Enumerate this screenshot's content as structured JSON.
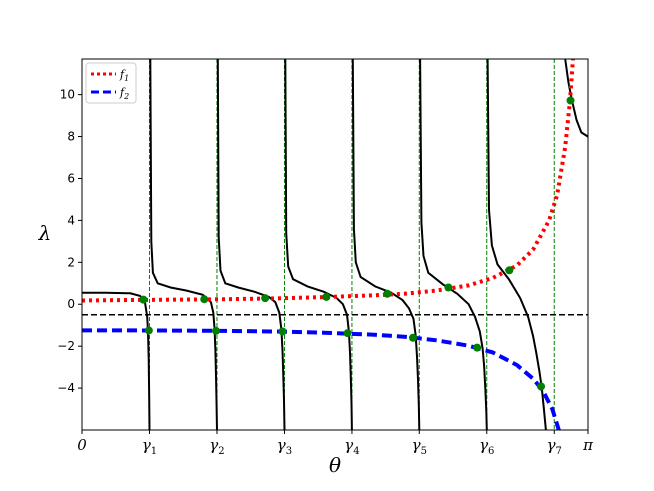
{
  "chart_data": {
    "type": "line",
    "xlabel": "θ",
    "ylabel": "λ",
    "xlim": [
      0,
      3.14159
    ],
    "ylim": [
      -6,
      11.7
    ],
    "grid": false,
    "legend_position": "top-left",
    "colors": {
      "f1": "#ff0000",
      "f2": "#0000ff",
      "curves": "#000000",
      "gamma_lines": "#008000",
      "points": "#008000",
      "hline": "#000000"
    },
    "x_ticks": [
      {
        "value": 0,
        "label": "0"
      },
      {
        "value": 0.419,
        "label": "γ1"
      },
      {
        "value": 0.838,
        "label": "γ2"
      },
      {
        "value": 1.257,
        "label": "γ3"
      },
      {
        "value": 1.676,
        "label": "γ4"
      },
      {
        "value": 2.094,
        "label": "γ5"
      },
      {
        "value": 2.513,
        "label": "γ6"
      },
      {
        "value": 2.932,
        "label": "γ7"
      },
      {
        "value": 3.14159,
        "label": "π"
      }
    ],
    "y_ticks": [
      {
        "value": -4,
        "label": "−4"
      },
      {
        "value": -2,
        "label": "−2"
      },
      {
        "value": 0,
        "label": "0"
      },
      {
        "value": 2,
        "label": "2"
      },
      {
        "value": 4,
        "label": "4"
      },
      {
        "value": 6,
        "label": "6"
      },
      {
        "value": 8,
        "label": "8"
      },
      {
        "value": 10,
        "label": "10"
      }
    ],
    "series": [
      {
        "name": "f1",
        "style": "dotted",
        "x": [
          0,
          0.3,
          0.6,
          0.9,
          1.2,
          1.5,
          1.8,
          2.0,
          2.2,
          2.4,
          2.55,
          2.7,
          2.8,
          2.9,
          2.95,
          3.0,
          3.03,
          3.06
        ],
        "y": [
          0.18,
          0.2,
          0.22,
          0.24,
          0.28,
          0.34,
          0.42,
          0.5,
          0.65,
          0.9,
          1.25,
          1.85,
          2.6,
          4.0,
          5.2,
          7.5,
          9.7,
          13.0
        ]
      },
      {
        "name": "f2",
        "style": "dashed",
        "x": [
          0,
          0.3,
          0.6,
          0.9,
          1.2,
          1.5,
          1.8,
          2.0,
          2.2,
          2.4,
          2.55,
          2.7,
          2.8,
          2.86,
          2.92,
          2.96
        ],
        "y": [
          -1.25,
          -1.25,
          -1.26,
          -1.27,
          -1.3,
          -1.36,
          -1.45,
          -1.55,
          -1.72,
          -1.98,
          -2.3,
          -2.9,
          -3.55,
          -4.1,
          -5.0,
          -6.0
        ]
      }
    ],
    "curves": [
      {
        "x": [
          0,
          0.15,
          0.3,
          0.36,
          0.39,
          0.405,
          0.41,
          0.414,
          0.417,
          0.419
        ],
        "y": [
          0.55,
          0.55,
          0.52,
          0.4,
          0.15,
          -0.6,
          -1.3,
          -2.6,
          -4.5,
          -6.0
        ]
      },
      {
        "x": [
          0.424,
          0.43,
          0.44,
          0.47,
          0.55,
          0.65,
          0.75,
          0.8,
          0.815,
          0.823,
          0.828,
          0.832,
          0.835,
          0.838
        ],
        "y": [
          11.7,
          3.0,
          1.5,
          1.0,
          0.8,
          0.65,
          0.45,
          0.1,
          -0.4,
          -1.2,
          -2.2,
          -3.4,
          -4.6,
          -6.0
        ]
      },
      {
        "x": [
          0.843,
          0.849,
          0.86,
          0.89,
          0.97,
          1.07,
          1.16,
          1.2,
          1.225,
          1.238,
          1.245,
          1.25,
          1.254,
          1.257
        ],
        "y": [
          11.7,
          3.2,
          1.6,
          1.0,
          0.8,
          0.6,
          0.35,
          0.1,
          -0.4,
          -1.2,
          -2.2,
          -3.4,
          -4.6,
          -6.0
        ]
      },
      {
        "x": [
          1.262,
          1.268,
          1.28,
          1.31,
          1.4,
          1.5,
          1.58,
          1.62,
          1.645,
          1.657,
          1.664,
          1.669,
          1.673,
          1.676
        ],
        "y": [
          11.7,
          3.4,
          1.8,
          1.2,
          0.85,
          0.6,
          0.3,
          0.0,
          -0.5,
          -1.3,
          -2.3,
          -3.5,
          -4.7,
          -6.0
        ]
      },
      {
        "x": [
          1.681,
          1.688,
          1.7,
          1.73,
          1.82,
          1.92,
          1.99,
          2.03,
          2.058,
          2.072,
          2.08,
          2.086,
          2.091,
          2.094
        ],
        "y": [
          11.7,
          3.6,
          2.0,
          1.3,
          0.85,
          0.55,
          0.2,
          -0.2,
          -0.7,
          -1.5,
          -2.5,
          -3.6,
          -4.8,
          -6.0
        ]
      },
      {
        "x": [
          2.099,
          2.107,
          2.12,
          2.15,
          2.24,
          2.33,
          2.4,
          2.44,
          2.47,
          2.487,
          2.497,
          2.504,
          2.51,
          2.513
        ],
        "y": [
          11.7,
          3.9,
          2.3,
          1.5,
          0.95,
          0.5,
          0.0,
          -0.6,
          -1.3,
          -2.1,
          -3.0,
          -4.0,
          -5.1,
          -6.0
        ]
      },
      {
        "x": [
          2.518,
          2.527,
          2.545,
          2.58,
          2.65,
          2.72,
          2.77,
          2.8,
          2.82,
          2.84,
          2.855,
          2.868,
          2.88
        ],
        "y": [
          11.7,
          4.5,
          2.8,
          1.9,
          1.2,
          0.3,
          -0.6,
          -1.5,
          -2.3,
          -3.2,
          -4.0,
          -5.0,
          -6.0
        ]
      },
      {
        "x": [
          3.0,
          3.02,
          3.04,
          3.07,
          3.1,
          3.14159
        ],
        "y": [
          11.7,
          10.6,
          9.8,
          8.8,
          8.2,
          8.0
        ]
      }
    ],
    "hline_y": -0.5,
    "points": [
      {
        "x": 0.381,
        "y": 0.22
      },
      {
        "x": 0.415,
        "y": -1.25
      },
      {
        "x": 0.759,
        "y": 0.24
      },
      {
        "x": 0.832,
        "y": -1.27
      },
      {
        "x": 1.137,
        "y": 0.29
      },
      {
        "x": 1.245,
        "y": -1.3
      },
      {
        "x": 1.517,
        "y": 0.35
      },
      {
        "x": 1.649,
        "y": -1.38
      },
      {
        "x": 1.895,
        "y": 0.5
      },
      {
        "x": 2.055,
        "y": -1.6
      },
      {
        "x": 2.275,
        "y": 0.8
      },
      {
        "x": 2.453,
        "y": -2.07
      },
      {
        "x": 2.653,
        "y": 1.62
      },
      {
        "x": 2.85,
        "y": -3.92
      },
      {
        "x": 3.033,
        "y": 9.72
      }
    ]
  }
}
